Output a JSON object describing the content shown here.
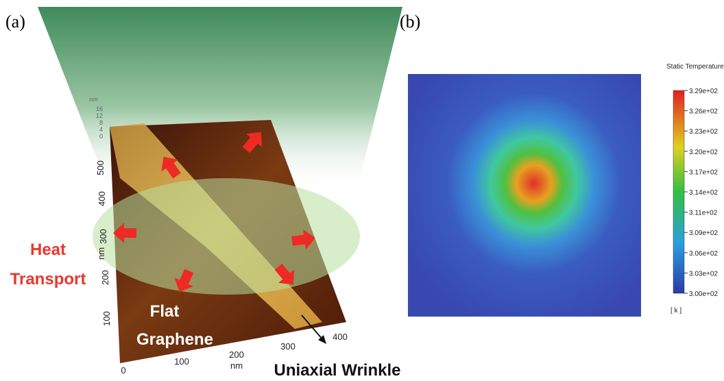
{
  "panel_a": {
    "label": "(a)",
    "heat_transport": [
      "Heat",
      "Transport"
    ],
    "flat_graphene": [
      "Flat",
      "Graphene"
    ],
    "wrinkle": "Uniaxial Wrinkle",
    "x_axis": {
      "unit": "nm",
      "ticks": [
        "0",
        "100",
        "200",
        "300",
        "400"
      ]
    },
    "y_axis": {
      "unit": "nm",
      "ticks": [
        "100",
        "200",
        "300",
        "400",
        "500"
      ]
    },
    "z_axis": {
      "unit": "nm",
      "ticks": [
        "16",
        "12",
        "8",
        "4",
        "0"
      ]
    }
  },
  "panel_b": {
    "label": "(b)",
    "colorbar_title": "Static Temperature",
    "colorbar_ticks": [
      "3.29e+02",
      "3.26e+02",
      "3.23e+02",
      "3.20e+02",
      "3.17e+02",
      "3.14e+02",
      "3.11e+02",
      "3.09e+02",
      "3.06e+02",
      "3.03e+02",
      "3.00e+02"
    ],
    "colorbar_unit": "[ k ]"
  }
}
